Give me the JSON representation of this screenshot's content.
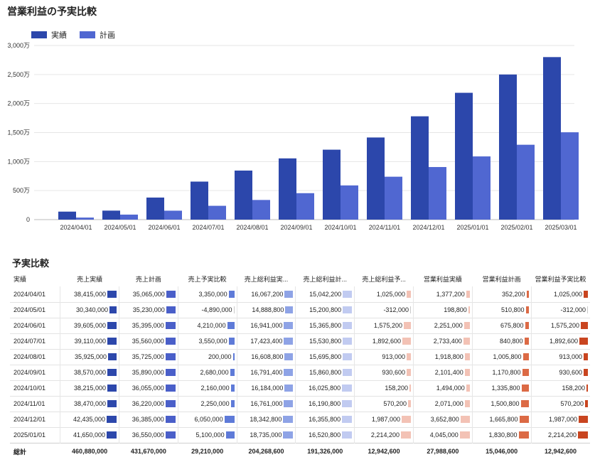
{
  "chart_data": {
    "type": "bar",
    "title": "営業利益の予実比較",
    "categories": [
      "2024/04/01",
      "2024/05/01",
      "2024/06/01",
      "2024/07/01",
      "2024/08/01",
      "2024/09/01",
      "2024/10/01",
      "2024/11/01",
      "2024/12/01",
      "2025/01/01",
      "2025/02/01",
      "2025/03/01"
    ],
    "series": [
      {
        "name": "実績",
        "color": "#2c47ab",
        "values": [
          1377200,
          1550000,
          3800000,
          6550000,
          8450000,
          10550000,
          12050000,
          14150000,
          17800000,
          21850000,
          25000000,
          28000000
        ]
      },
      {
        "name": "計画",
        "color": "#5067d1",
        "values": [
          352200,
          863000,
          1538800,
          2379600,
          3385400,
          4556200,
          5891800,
          7392600,
          9058400,
          10889200,
          12900000,
          15046000
        ]
      }
    ],
    "yticks": [
      "0",
      "500万",
      "1,000万",
      "1,500万",
      "2,000万",
      "2,500万",
      "3,000万"
    ],
    "ylim": [
      0,
      30000000
    ],
    "legend_position": "top-left"
  },
  "table": {
    "title": "予実比較",
    "columns": [
      "実績",
      "売上実績",
      "売上計画",
      "売上予実比較",
      "売上総利益実...",
      "売上総利益計...",
      "売上総利益予...",
      "営業利益実績",
      "営業利益計画",
      "営業利益予実比較"
    ],
    "column_colors": [
      "",
      "#2c47ab",
      "#4a5fc9",
      "#5e7ad8",
      "#8ea3e6",
      "#c1cbf1",
      "#f3c2b5",
      "#f3c2b5",
      "#dc6a45",
      "#c94520"
    ],
    "column_max": [
      0,
      42435000,
      36550000,
      6050000,
      18735000,
      16520800,
      2214200,
      4045000,
      1830800,
      2214200
    ],
    "rows": [
      {
        "label": "2024/04/01",
        "values": [
          "38,415,000",
          "35,065,000",
          "3,350,000",
          "16,067,200",
          "15,042,200",
          "1,025,000",
          "1,377,200",
          "352,200",
          "1,025,000"
        ],
        "nums": [
          38415000,
          35065000,
          3350000,
          16067200,
          15042200,
          1025000,
          1377200,
          352200,
          1025000
        ]
      },
      {
        "label": "2024/05/01",
        "values": [
          "30,340,000",
          "35,230,000",
          "-4,890,000",
          "14,888,800",
          "15,200,800",
          "-312,000",
          "198,800",
          "510,800",
          "-312,000"
        ],
        "nums": [
          30340000,
          35230000,
          -4890000,
          14888800,
          15200800,
          -312000,
          198800,
          510800,
          -312000
        ]
      },
      {
        "label": "2024/06/01",
        "values": [
          "39,605,000",
          "35,395,000",
          "4,210,000",
          "16,941,000",
          "15,365,800",
          "1,575,200",
          "2,251,000",
          "675,800",
          "1,575,200"
        ],
        "nums": [
          39605000,
          35395000,
          4210000,
          16941000,
          15365800,
          1575200,
          2251000,
          675800,
          1575200
        ]
      },
      {
        "label": "2024/07/01",
        "values": [
          "39,110,000",
          "35,560,000",
          "3,550,000",
          "17,423,400",
          "15,530,800",
          "1,892,600",
          "2,733,400",
          "840,800",
          "1,892,600"
        ],
        "nums": [
          39110000,
          35560000,
          3550000,
          17423400,
          15530800,
          1892600,
          2733400,
          840800,
          1892600
        ]
      },
      {
        "label": "2024/08/01",
        "values": [
          "35,925,000",
          "35,725,000",
          "200,000",
          "16,608,800",
          "15,695,800",
          "913,000",
          "1,918,800",
          "1,005,800",
          "913,000"
        ],
        "nums": [
          35925000,
          35725000,
          200000,
          16608800,
          15695800,
          913000,
          1918800,
          1005800,
          913000
        ]
      },
      {
        "label": "2024/09/01",
        "values": [
          "38,570,000",
          "35,890,000",
          "2,680,000",
          "16,791,400",
          "15,860,800",
          "930,600",
          "2,101,400",
          "1,170,800",
          "930,600"
        ],
        "nums": [
          38570000,
          35890000,
          2680000,
          16791400,
          15860800,
          930600,
          2101400,
          1170800,
          930600
        ]
      },
      {
        "label": "2024/10/01",
        "values": [
          "38,215,000",
          "36,055,000",
          "2,160,000",
          "16,184,000",
          "16,025,800",
          "158,200",
          "1,494,000",
          "1,335,800",
          "158,200"
        ],
        "nums": [
          38215000,
          36055000,
          2160000,
          16184000,
          16025800,
          158200,
          1494000,
          1335800,
          158200
        ]
      },
      {
        "label": "2024/11/01",
        "values": [
          "38,470,000",
          "36,220,000",
          "2,250,000",
          "16,761,000",
          "16,190,800",
          "570,200",
          "2,071,000",
          "1,500,800",
          "570,200"
        ],
        "nums": [
          38470000,
          36220000,
          2250000,
          16761000,
          16190800,
          570200,
          2071000,
          1500800,
          570200
        ]
      },
      {
        "label": "2024/12/01",
        "values": [
          "42,435,000",
          "36,385,000",
          "6,050,000",
          "18,342,800",
          "16,355,800",
          "1,987,000",
          "3,652,800",
          "1,665,800",
          "1,987,000"
        ],
        "nums": [
          42435000,
          36385000,
          6050000,
          18342800,
          16355800,
          1987000,
          3652800,
          1665800,
          1987000
        ]
      },
      {
        "label": "2025/01/01",
        "values": [
          "41,650,000",
          "36,550,000",
          "5,100,000",
          "18,735,000",
          "16,520,800",
          "2,214,200",
          "4,045,000",
          "1,830,800",
          "2,214,200"
        ],
        "nums": [
          41650000,
          36550000,
          5100000,
          18735000,
          16520800,
          2214200,
          4045000,
          1830800,
          2214200
        ]
      }
    ],
    "total": {
      "label": "総計",
      "values": [
        "460,880,000",
        "431,670,000",
        "29,210,000",
        "204,268,600",
        "191,326,000",
        "12,942,600",
        "27,988,600",
        "15,046,000",
        "12,942,600"
      ]
    }
  }
}
